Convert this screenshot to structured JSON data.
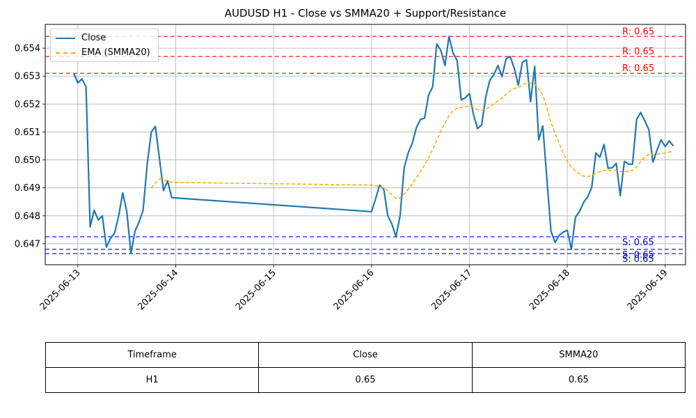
{
  "chart_data": {
    "type": "line",
    "title": "AUDUSD H1 - Close vs SMMA20 + Support/Resistance",
    "xlabel": "",
    "ylabel": "",
    "x_ticks": [
      "2025-06-13",
      "2025-06-14",
      "2025-06-15",
      "2025-06-16",
      "2025-06-17",
      "2025-06-18",
      "2025-06-19"
    ],
    "y_ticks": [
      "0.647",
      "0.648",
      "0.649",
      "0.650",
      "0.651",
      "0.652",
      "0.653",
      "0.654"
    ],
    "xlim": [
      "2025-06-12 16:00",
      "2025-06-19 05:00"
    ],
    "ylim": [
      0.64625,
      0.65485
    ],
    "grid": true,
    "legend_position": "upper-left",
    "series": [
      {
        "name": "Close",
        "color": "#1f77b4",
        "style": "solid",
        "points": [
          [
            "2025-06-12 23:00",
            0.6531
          ],
          [
            "2025-06-13 00:00",
            0.65275
          ],
          [
            "2025-06-13 01:00",
            0.6529
          ],
          [
            "2025-06-13 02:00",
            0.65262
          ],
          [
            "2025-06-13 03:00",
            0.6476
          ],
          [
            "2025-06-13 04:00",
            0.6482
          ],
          [
            "2025-06-13 05:00",
            0.64785
          ],
          [
            "2025-06-13 06:00",
            0.648
          ],
          [
            "2025-06-13 07:00",
            0.64688
          ],
          [
            "2025-06-13 08:00",
            0.6472
          ],
          [
            "2025-06-13 09:00",
            0.64738
          ],
          [
            "2025-06-13 10:00",
            0.648
          ],
          [
            "2025-06-13 11:00",
            0.64882
          ],
          [
            "2025-06-13 12:00",
            0.64815
          ],
          [
            "2025-06-13 13:00",
            0.64665
          ],
          [
            "2025-06-13 14:00",
            0.64745
          ],
          [
            "2025-06-13 15:00",
            0.64778
          ],
          [
            "2025-06-13 16:00",
            0.6482
          ],
          [
            "2025-06-13 17:00",
            0.64985
          ],
          [
            "2025-06-13 18:00",
            0.651
          ],
          [
            "2025-06-13 19:00",
            0.6512
          ],
          [
            "2025-06-13 20:00",
            0.65005
          ],
          [
            "2025-06-13 21:00",
            0.6489
          ],
          [
            "2025-06-13 22:00",
            0.64925
          ],
          [
            "2025-06-13 23:00",
            0.64865
          ],
          [
            "2025-06-16 00:00",
            0.64815
          ],
          [
            "2025-06-16 01:00",
            0.6486
          ],
          [
            "2025-06-16 02:00",
            0.6491
          ],
          [
            "2025-06-16 03:00",
            0.64895
          ],
          [
            "2025-06-16 04:00",
            0.648
          ],
          [
            "2025-06-16 05:00",
            0.6477
          ],
          [
            "2025-06-16 06:00",
            0.64725
          ],
          [
            "2025-06-16 07:00",
            0.648
          ],
          [
            "2025-06-16 08:00",
            0.64972
          ],
          [
            "2025-06-16 09:00",
            0.65025
          ],
          [
            "2025-06-16 10:00",
            0.6506
          ],
          [
            "2025-06-16 11:00",
            0.65115
          ],
          [
            "2025-06-16 12:00",
            0.65145
          ],
          [
            "2025-06-16 13:00",
            0.6515
          ],
          [
            "2025-06-16 14:00",
            0.65232
          ],
          [
            "2025-06-16 15:00",
            0.65262
          ],
          [
            "2025-06-16 16:00",
            0.65415
          ],
          [
            "2025-06-16 17:00",
            0.65392
          ],
          [
            "2025-06-16 18:00",
            0.65338
          ],
          [
            "2025-06-16 19:00",
            0.65442
          ],
          [
            "2025-06-16 20:00",
            0.65382
          ],
          [
            "2025-06-16 21:00",
            0.65356
          ],
          [
            "2025-06-16 22:00",
            0.65215
          ],
          [
            "2025-06-16 23:00",
            0.65222
          ],
          [
            "2025-06-17 00:00",
            0.65238
          ],
          [
            "2025-06-17 01:00",
            0.65162
          ],
          [
            "2025-06-17 02:00",
            0.65112
          ],
          [
            "2025-06-17 03:00",
            0.65125
          ],
          [
            "2025-06-17 04:00",
            0.65225
          ],
          [
            "2025-06-17 05:00",
            0.65285
          ],
          [
            "2025-06-17 06:00",
            0.65305
          ],
          [
            "2025-06-17 07:00",
            0.65338
          ],
          [
            "2025-06-17 08:00",
            0.65298
          ],
          [
            "2025-06-17 09:00",
            0.65362
          ],
          [
            "2025-06-17 10:00",
            0.6537
          ],
          [
            "2025-06-17 11:00",
            0.65328
          ],
          [
            "2025-06-17 12:00",
            0.65268
          ],
          [
            "2025-06-17 13:00",
            0.6535
          ],
          [
            "2025-06-17 14:00",
            0.65358
          ],
          [
            "2025-06-17 15:00",
            0.65208
          ],
          [
            "2025-06-17 16:00",
            0.65335
          ],
          [
            "2025-06-17 17:00",
            0.65072
          ],
          [
            "2025-06-17 18:00",
            0.65122
          ],
          [
            "2025-06-17 19:00",
            0.6493
          ],
          [
            "2025-06-17 20:00",
            0.64745
          ],
          [
            "2025-06-17 21:00",
            0.64705
          ],
          [
            "2025-06-17 22:00",
            0.6473
          ],
          [
            "2025-06-17 23:00",
            0.64742
          ],
          [
            "2025-06-18 00:00",
            0.64748
          ],
          [
            "2025-06-18 01:00",
            0.6468
          ],
          [
            "2025-06-18 02:00",
            0.64795
          ],
          [
            "2025-06-18 03:00",
            0.64815
          ],
          [
            "2025-06-18 04:00",
            0.64848
          ],
          [
            "2025-06-18 05:00",
            0.64868
          ],
          [
            "2025-06-18 06:00",
            0.64902
          ],
          [
            "2025-06-18 07:00",
            0.65025
          ],
          [
            "2025-06-18 08:00",
            0.6501
          ],
          [
            "2025-06-18 09:00",
            0.65055
          ],
          [
            "2025-06-18 10:00",
            0.6497
          ],
          [
            "2025-06-18 11:00",
            0.64972
          ],
          [
            "2025-06-18 12:00",
            0.64988
          ],
          [
            "2025-06-18 13:00",
            0.64872
          ],
          [
            "2025-06-18 14:00",
            0.64995
          ],
          [
            "2025-06-18 15:00",
            0.64985
          ],
          [
            "2025-06-18 16:00",
            0.64985
          ],
          [
            "2025-06-18 17:00",
            0.65145
          ],
          [
            "2025-06-18 18:00",
            0.6517
          ],
          [
            "2025-06-18 19:00",
            0.6514
          ],
          [
            "2025-06-18 20:00",
            0.65108
          ],
          [
            "2025-06-18 21:00",
            0.64992
          ],
          [
            "2025-06-18 22:00",
            0.65035
          ],
          [
            "2025-06-18 23:00",
            0.65072
          ],
          [
            "2025-06-19 00:00",
            0.65048
          ],
          [
            "2025-06-19 01:00",
            0.65068
          ],
          [
            "2025-06-19 02:00",
            0.6505
          ]
        ]
      },
      {
        "name": "EMA (SMMA20)",
        "color": "#ffa500",
        "style": "dashed",
        "points": [
          [
            "2025-06-13 18:00",
            0.649
          ],
          [
            "2025-06-13 19:00",
            0.64918
          ],
          [
            "2025-06-13 20:00",
            0.64932
          ],
          [
            "2025-06-13 21:00",
            0.6493
          ],
          [
            "2025-06-13 22:00",
            0.64925
          ],
          [
            "2025-06-13 23:00",
            0.6492
          ],
          [
            "2025-06-16 00:00",
            0.6491
          ],
          [
            "2025-06-16 01:00",
            0.64908
          ],
          [
            "2025-06-16 02:00",
            0.64905
          ],
          [
            "2025-06-16 03:00",
            0.649
          ],
          [
            "2025-06-16 04:00",
            0.6489
          ],
          [
            "2025-06-16 05:00",
            0.64875
          ],
          [
            "2025-06-16 06:00",
            0.64862
          ],
          [
            "2025-06-16 07:00",
            0.64865
          ],
          [
            "2025-06-16 08:00",
            0.64878
          ],
          [
            "2025-06-16 09:00",
            0.64895
          ],
          [
            "2025-06-16 10:00",
            0.64915
          ],
          [
            "2025-06-16 11:00",
            0.64935
          ],
          [
            "2025-06-16 12:00",
            0.64958
          ],
          [
            "2025-06-16 13:00",
            0.64982
          ],
          [
            "2025-06-16 14:00",
            0.65008
          ],
          [
            "2025-06-16 15:00",
            0.65038
          ],
          [
            "2025-06-16 16:00",
            0.6507
          ],
          [
            "2025-06-16 17:00",
            0.65102
          ],
          [
            "2025-06-16 18:00",
            0.65132
          ],
          [
            "2025-06-16 19:00",
            0.65158
          ],
          [
            "2025-06-16 20:00",
            0.65178
          ],
          [
            "2025-06-16 21:00",
            0.65185
          ],
          [
            "2025-06-16 22:00",
            0.65188
          ],
          [
            "2025-06-16 23:00",
            0.6519
          ],
          [
            "2025-06-17 00:00",
            0.65192
          ],
          [
            "2025-06-17 01:00",
            0.65188
          ],
          [
            "2025-06-17 02:00",
            0.6518
          ],
          [
            "2025-06-17 03:00",
            0.65178
          ],
          [
            "2025-06-17 04:00",
            0.65182
          ],
          [
            "2025-06-17 05:00",
            0.6519
          ],
          [
            "2025-06-17 06:00",
            0.652
          ],
          [
            "2025-06-17 07:00",
            0.65212
          ],
          [
            "2025-06-17 08:00",
            0.65222
          ],
          [
            "2025-06-17 09:00",
            0.65235
          ],
          [
            "2025-06-17 10:00",
            0.65248
          ],
          [
            "2025-06-17 11:00",
            0.65255
          ],
          [
            "2025-06-17 12:00",
            0.6526
          ],
          [
            "2025-06-17 13:00",
            0.65268
          ],
          [
            "2025-06-17 14:00",
            0.65275
          ],
          [
            "2025-06-17 15:00",
            0.65275
          ],
          [
            "2025-06-17 16:00",
            0.65272
          ],
          [
            "2025-06-17 17:00",
            0.65255
          ],
          [
            "2025-06-17 18:00",
            0.65232
          ],
          [
            "2025-06-17 19:00",
            0.65185
          ],
          [
            "2025-06-17 20:00",
            0.65135
          ],
          [
            "2025-06-17 21:00",
            0.65095
          ],
          [
            "2025-06-17 22:00",
            0.6506
          ],
          [
            "2025-06-17 23:00",
            0.65025
          ],
          [
            "2025-06-18 00:00",
            0.64995
          ],
          [
            "2025-06-18 01:00",
            0.64975
          ],
          [
            "2025-06-18 02:00",
            0.6496
          ],
          [
            "2025-06-18 03:00",
            0.6495
          ],
          [
            "2025-06-18 04:00",
            0.64942
          ],
          [
            "2025-06-18 05:00",
            0.6494
          ],
          [
            "2025-06-18 06:00",
            0.64945
          ],
          [
            "2025-06-18 07:00",
            0.64952
          ],
          [
            "2025-06-18 08:00",
            0.64958
          ],
          [
            "2025-06-18 09:00",
            0.64962
          ],
          [
            "2025-06-18 10:00",
            0.64962
          ],
          [
            "2025-06-18 11:00",
            0.64963
          ],
          [
            "2025-06-18 12:00",
            0.64962
          ],
          [
            "2025-06-18 13:00",
            0.64958
          ],
          [
            "2025-06-18 14:00",
            0.64958
          ],
          [
            "2025-06-18 15:00",
            0.6496
          ],
          [
            "2025-06-18 16:00",
            0.64962
          ],
          [
            "2025-06-18 17:00",
            0.64975
          ],
          [
            "2025-06-18 18:00",
            0.64995
          ],
          [
            "2025-06-18 19:00",
            0.6501
          ],
          [
            "2025-06-18 20:00",
            0.6502
          ],
          [
            "2025-06-18 21:00",
            0.65018
          ],
          [
            "2025-06-18 22:00",
            0.6502
          ],
          [
            "2025-06-18 23:00",
            0.65023
          ],
          [
            "2025-06-19 00:00",
            0.65025
          ],
          [
            "2025-06-19 01:00",
            0.65028
          ],
          [
            "2025-06-19 02:00",
            0.65032
          ]
        ]
      }
    ],
    "hlines": [
      {
        "kind": "resistance",
        "value": 0.65442,
        "label": "R: 0.65",
        "color": "#ff0000"
      },
      {
        "kind": "resistance",
        "value": 0.6537,
        "label": "R: 0.65",
        "color": "#ff0000"
      },
      {
        "kind": "resistance",
        "value": 0.6531,
        "label": "R: 0.65",
        "color": "#ff0000"
      },
      {
        "kind": "support",
        "value": 0.64725,
        "label": "S: 0.65",
        "color": "#0000ff"
      },
      {
        "kind": "support",
        "value": 0.6468,
        "label": "S: 0.65",
        "color": "#0000ff"
      },
      {
        "kind": "support",
        "value": 0.64665,
        "label": "S: 0.65",
        "color": "#0000ff"
      }
    ]
  },
  "table": {
    "headers": [
      "Timeframe",
      "Close",
      "SMMA20"
    ],
    "rows": [
      [
        "H1",
        "0.65",
        "0.65"
      ]
    ]
  }
}
